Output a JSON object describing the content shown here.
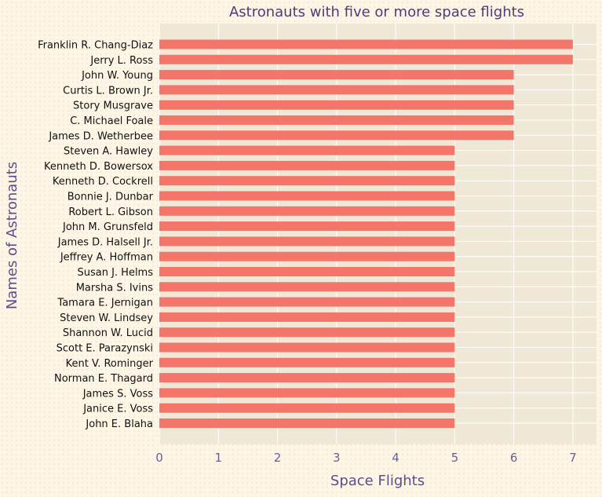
{
  "chart_data": {
    "type": "bar",
    "orientation": "horizontal",
    "title": "Astronauts with five or more space flights",
    "xlabel": "Space Flights",
    "ylabel": "Names of Astronauts",
    "xlim": [
      0,
      7.4
    ],
    "xticks": [
      0,
      1,
      2,
      3,
      4,
      5,
      6,
      7
    ],
    "grid": true,
    "categories": [
      "Franklin R. Chang-Diaz",
      "Jerry L. Ross",
      "John W. Young",
      "Curtis L. Brown Jr.",
      "Story Musgrave",
      "C. Michael Foale",
      "James D. Wetherbee",
      "Steven A. Hawley",
      "Kenneth D. Bowersox",
      "Kenneth D. Cockrell",
      "Bonnie J. Dunbar",
      "Robert L. Gibson",
      "John M. Grunsfeld",
      "James D. Halsell Jr.",
      "Jeffrey A. Hoffman",
      "Susan J. Helms",
      "Marsha S. Ivins",
      "Tamara E. Jernigan",
      "Steven W. Lindsey",
      "Shannon W. Lucid",
      "Scott E. Parazynski",
      "Kent V. Rominger",
      "Norman E. Thagard",
      "James S. Voss",
      "Janice E. Voss",
      "John E. Blaha"
    ],
    "values": [
      7,
      7,
      6,
      6,
      6,
      6,
      6,
      5,
      5,
      5,
      5,
      5,
      5,
      5,
      5,
      5,
      5,
      5,
      5,
      5,
      5,
      5,
      5,
      5,
      5,
      5
    ],
    "colors": {
      "bar": "#f4766b",
      "plot_background": "#f0e8d6",
      "grid": "#ffffff",
      "title": "#4b3d78",
      "axis_label": "#5a4e8c",
      "tick_label_x": "#6a5e9a",
      "tick_label_y": "#111111"
    }
  }
}
